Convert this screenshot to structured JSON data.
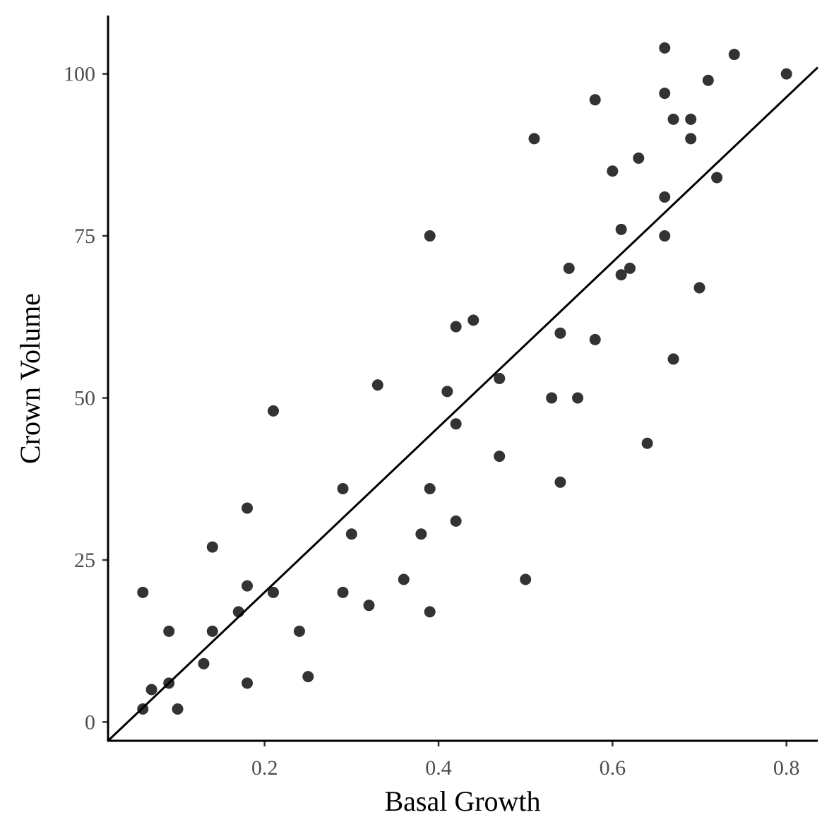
{
  "chart_data": {
    "type": "scatter",
    "xlabel": "Basal Growth",
    "ylabel": "Crown Volume",
    "xlim": [
      0.02,
      0.836
    ],
    "ylim": [
      -2.9,
      109
    ],
    "xticks": [
      0.2,
      0.4,
      0.6,
      0.8
    ],
    "xtick_labels": [
      "0.2",
      "0.4",
      "0.6",
      "0.8"
    ],
    "yticks": [
      0,
      25,
      50,
      75,
      100
    ],
    "ytick_labels": [
      "0",
      "25",
      "50",
      "75",
      "100"
    ],
    "grid": false,
    "legend": "none",
    "point_color": "#333333",
    "line_color": "#000000",
    "points": [
      {
        "x": 0.06,
        "y": 2
      },
      {
        "x": 0.06,
        "y": 20
      },
      {
        "x": 0.07,
        "y": 5
      },
      {
        "x": 0.09,
        "y": 6
      },
      {
        "x": 0.09,
        "y": 14
      },
      {
        "x": 0.1,
        "y": 2
      },
      {
        "x": 0.13,
        "y": 9
      },
      {
        "x": 0.14,
        "y": 14
      },
      {
        "x": 0.14,
        "y": 27
      },
      {
        "x": 0.17,
        "y": 17
      },
      {
        "x": 0.18,
        "y": 6
      },
      {
        "x": 0.18,
        "y": 21
      },
      {
        "x": 0.18,
        "y": 33
      },
      {
        "x": 0.21,
        "y": 20
      },
      {
        "x": 0.21,
        "y": 48
      },
      {
        "x": 0.24,
        "y": 14
      },
      {
        "x": 0.25,
        "y": 7
      },
      {
        "x": 0.29,
        "y": 20
      },
      {
        "x": 0.29,
        "y": 36
      },
      {
        "x": 0.3,
        "y": 29
      },
      {
        "x": 0.32,
        "y": 18
      },
      {
        "x": 0.33,
        "y": 52
      },
      {
        "x": 0.36,
        "y": 22
      },
      {
        "x": 0.38,
        "y": 29
      },
      {
        "x": 0.39,
        "y": 17
      },
      {
        "x": 0.39,
        "y": 36
      },
      {
        "x": 0.39,
        "y": 75
      },
      {
        "x": 0.41,
        "y": 51
      },
      {
        "x": 0.42,
        "y": 31
      },
      {
        "x": 0.42,
        "y": 46
      },
      {
        "x": 0.42,
        "y": 61
      },
      {
        "x": 0.44,
        "y": 62
      },
      {
        "x": 0.47,
        "y": 41
      },
      {
        "x": 0.47,
        "y": 53
      },
      {
        "x": 0.5,
        "y": 22
      },
      {
        "x": 0.51,
        "y": 90
      },
      {
        "x": 0.53,
        "y": 50
      },
      {
        "x": 0.54,
        "y": 37
      },
      {
        "x": 0.54,
        "y": 60
      },
      {
        "x": 0.55,
        "y": 70
      },
      {
        "x": 0.56,
        "y": 50
      },
      {
        "x": 0.58,
        "y": 59
      },
      {
        "x": 0.58,
        "y": 96
      },
      {
        "x": 0.6,
        "y": 85
      },
      {
        "x": 0.61,
        "y": 69
      },
      {
        "x": 0.61,
        "y": 76
      },
      {
        "x": 0.62,
        "y": 70
      },
      {
        "x": 0.63,
        "y": 87
      },
      {
        "x": 0.64,
        "y": 43
      },
      {
        "x": 0.66,
        "y": 75
      },
      {
        "x": 0.66,
        "y": 81
      },
      {
        "x": 0.66,
        "y": 97
      },
      {
        "x": 0.66,
        "y": 104
      },
      {
        "x": 0.67,
        "y": 56
      },
      {
        "x": 0.67,
        "y": 93
      },
      {
        "x": 0.69,
        "y": 90
      },
      {
        "x": 0.69,
        "y": 93
      },
      {
        "x": 0.7,
        "y": 67
      },
      {
        "x": 0.71,
        "y": 99
      },
      {
        "x": 0.72,
        "y": 84
      },
      {
        "x": 0.74,
        "y": 103
      },
      {
        "x": 0.8,
        "y": 100
      }
    ],
    "fit_line": [
      {
        "x": 0.02,
        "y": -2.9
      },
      {
        "x": 0.836,
        "y": 101
      }
    ]
  }
}
